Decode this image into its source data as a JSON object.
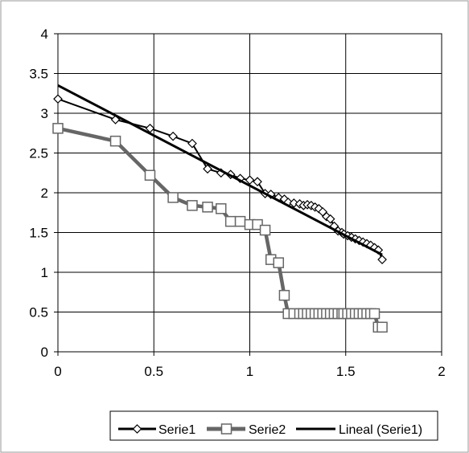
{
  "chart_data": {
    "type": "line",
    "title": "",
    "xlabel": "",
    "ylabel": "",
    "xlim": [
      0,
      2
    ],
    "ylim": [
      0,
      4
    ],
    "x_ticks": [
      "0",
      "0.5",
      "1",
      "1.5",
      "2"
    ],
    "y_ticks": [
      "0",
      "0.5",
      "1",
      "1.5",
      "2",
      "2.5",
      "3",
      "3.5",
      "4"
    ],
    "grid": true,
    "legend_position": "bottom",
    "series": [
      {
        "name": "Serie1",
        "color": "#000000",
        "marker": "diamond",
        "points": [
          [
            0,
            3.18
          ],
          [
            0.3,
            2.92
          ],
          [
            0.48,
            2.81
          ],
          [
            0.6,
            2.71
          ],
          [
            0.7,
            2.62
          ],
          [
            0.78,
            2.3
          ],
          [
            0.85,
            2.25
          ],
          [
            0.9,
            2.23
          ],
          [
            0.95,
            2.18
          ],
          [
            1.0,
            2.16
          ],
          [
            1.04,
            2.14
          ],
          [
            1.08,
            1.99
          ],
          [
            1.11,
            1.98
          ],
          [
            1.15,
            1.94
          ],
          [
            1.18,
            1.92
          ],
          [
            1.2,
            1.88
          ],
          [
            1.23,
            1.87
          ],
          [
            1.26,
            1.86
          ],
          [
            1.28,
            1.84
          ],
          [
            1.3,
            1.85
          ],
          [
            1.32,
            1.84
          ],
          [
            1.34,
            1.82
          ],
          [
            1.36,
            1.8
          ],
          [
            1.38,
            1.76
          ],
          [
            1.4,
            1.7
          ],
          [
            1.42,
            1.67
          ],
          [
            1.44,
            1.58
          ],
          [
            1.46,
            1.52
          ],
          [
            1.48,
            1.5
          ],
          [
            1.49,
            1.48
          ],
          [
            1.51,
            1.46
          ],
          [
            1.53,
            1.44
          ],
          [
            1.55,
            1.42
          ],
          [
            1.57,
            1.4
          ],
          [
            1.59,
            1.38
          ],
          [
            1.61,
            1.36
          ],
          [
            1.63,
            1.34
          ],
          [
            1.65,
            1.31
          ],
          [
            1.67,
            1.28
          ],
          [
            1.69,
            1.16
          ]
        ]
      },
      {
        "name": "Serie2",
        "color": "#666666",
        "marker": "square",
        "points": [
          [
            0,
            2.81
          ],
          [
            0.3,
            2.65
          ],
          [
            0.48,
            2.22
          ],
          [
            0.6,
            1.94
          ],
          [
            0.7,
            1.84
          ],
          [
            0.78,
            1.82
          ],
          [
            0.85,
            1.8
          ],
          [
            0.9,
            1.64
          ],
          [
            0.95,
            1.64
          ],
          [
            1.0,
            1.6
          ],
          [
            1.04,
            1.6
          ],
          [
            1.08,
            1.53
          ],
          [
            1.11,
            1.16
          ],
          [
            1.15,
            1.12
          ],
          [
            1.18,
            0.71
          ],
          [
            1.2,
            0.48
          ],
          [
            1.23,
            0.48
          ],
          [
            1.26,
            0.48
          ],
          [
            1.28,
            0.48
          ],
          [
            1.3,
            0.48
          ],
          [
            1.32,
            0.48
          ],
          [
            1.34,
            0.48
          ],
          [
            1.36,
            0.48
          ],
          [
            1.38,
            0.48
          ],
          [
            1.4,
            0.48
          ],
          [
            1.42,
            0.48
          ],
          [
            1.44,
            0.48
          ],
          [
            1.46,
            0.48
          ],
          [
            1.48,
            0.48
          ],
          [
            1.49,
            0.48
          ],
          [
            1.51,
            0.48
          ],
          [
            1.53,
            0.48
          ],
          [
            1.55,
            0.48
          ],
          [
            1.57,
            0.48
          ],
          [
            1.59,
            0.48
          ],
          [
            1.61,
            0.48
          ],
          [
            1.63,
            0.48
          ],
          [
            1.65,
            0.48
          ],
          [
            1.67,
            0.31
          ],
          [
            1.69,
            0.31
          ]
        ]
      },
      {
        "name": "Lineal (Serie1)",
        "color": "#000000",
        "marker": "none",
        "type": "trendline",
        "points": [
          [
            0,
            3.35
          ],
          [
            1.69,
            1.22
          ]
        ]
      }
    ]
  }
}
